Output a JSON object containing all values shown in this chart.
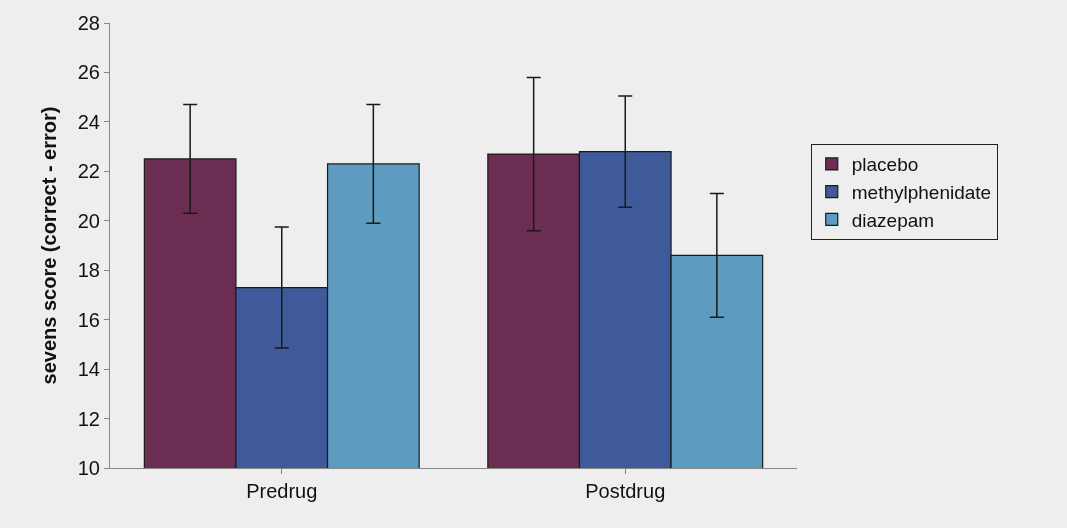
{
  "chart_data": {
    "type": "bar",
    "categories": [
      "Predrug",
      "Postdrug"
    ],
    "ylabel": "sevens score (correct - error)",
    "ylim": [
      10,
      28
    ],
    "yticks": [
      10,
      12,
      14,
      16,
      18,
      20,
      22,
      24,
      26,
      28
    ],
    "grid": false,
    "legend": "right",
    "series": [
      {
        "name": "placebo",
        "color": "#6b2d52",
        "values": [
          22.5,
          22.7
        ],
        "errors": [
          2.2,
          3.1
        ]
      },
      {
        "name": "methylphenidate",
        "color": "#3f5a9a",
        "values": [
          17.3,
          22.8
        ],
        "errors": [
          2.45,
          2.25
        ]
      },
      {
        "name": "diazepam",
        "color": "#5d9cc0",
        "values": [
          22.3,
          18.6
        ],
        "errors": [
          2.4,
          2.5
        ]
      }
    ]
  }
}
